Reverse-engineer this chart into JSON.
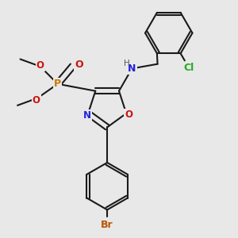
{
  "bg_color": "#e8e8e8",
  "bond_color": "#1a1a1a",
  "N_color": "#2222dd",
  "O_color": "#cc1111",
  "P_color": "#cc7700",
  "Br_color": "#bb5500",
  "Cl_color": "#22aa22",
  "H_color": "#555555",
  "lw": 1.5,
  "dbl_off": 0.12,
  "fig_w": 3.0,
  "fig_h": 3.0,
  "dpi": 100,
  "xlim": [
    0,
    10
  ],
  "ylim": [
    0,
    10
  ]
}
